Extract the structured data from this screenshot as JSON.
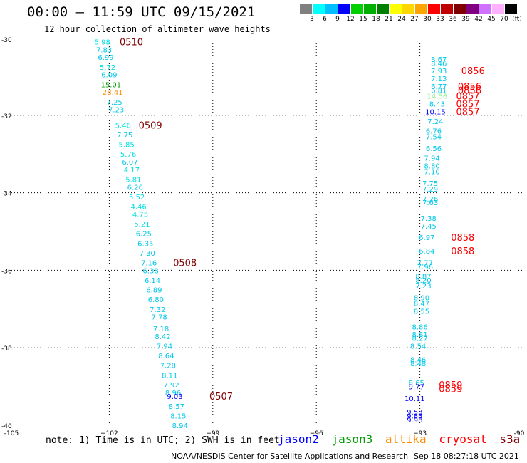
{
  "header": {
    "title": "00:00 – 11:59 UTC 09/15/2021",
    "subtitle": "12 hour collection of altimeter wave heights"
  },
  "color_scale": {
    "labels": [
      "3",
      "6",
      "9",
      "12",
      "15",
      "18",
      "21",
      "24",
      "27",
      "30",
      "33",
      "36",
      "39",
      "42",
      "45",
      "70",
      "(ft)"
    ],
    "colors": [
      "#808080",
      "#00ffff",
      "#00bfff",
      "#0000ff",
      "#00d000",
      "#00b000",
      "#008000",
      "#ffff00",
      "#ffd700",
      "#ffa500",
      "#ff0000",
      "#c00000",
      "#800000",
      "#800080",
      "#d070ff",
      "#ffb0ff",
      "#000000"
    ]
  },
  "footer": {
    "note": "note:  1) Time is in UTC;  2) SWH is in feet",
    "credit": "NOAA/NESDIS Center for Satellite Applications and Research",
    "timestamp": "Sep 18 08:27:18 UTC 2021"
  },
  "legend": [
    {
      "name": "jason2",
      "color": "#0000ff"
    },
    {
      "name": "jason3",
      "color": "#00a000"
    },
    {
      "name": "altika",
      "color": "#ff8c00"
    },
    {
      "name": "cryosat",
      "color": "#ff0000"
    },
    {
      "name": "s3a",
      "color": "#800000"
    }
  ],
  "chart_data": {
    "type": "scatter",
    "title": "00:00 – 11:59 UTC 09/15/2021",
    "xlim": [
      -105,
      -90
    ],
    "ylim": [
      -40,
      -30
    ],
    "x_ticks": [
      -105,
      -102,
      -99,
      -96,
      -93,
      -90
    ],
    "x_tick_labels": [
      "-105",
      "−102",
      "−99",
      "−96",
      "−93",
      "-90"
    ],
    "y_ticks": [
      -30,
      -32,
      -34,
      -36,
      -38,
      -40
    ],
    "y_tick_labels": [
      "-30",
      "-32",
      "-34",
      "-36",
      "-38",
      "-40"
    ],
    "grid": true,
    "points": [
      {
        "x": -102.2,
        "y": -30.1,
        "label": "5.98",
        "color": "#00e0e0"
      },
      {
        "x": -102.15,
        "y": -30.3,
        "label": "7.83",
        "color": "#00c8e8"
      },
      {
        "x": -102.1,
        "y": -30.5,
        "label": "6.99",
        "color": "#00c8e8"
      },
      {
        "x": -102.05,
        "y": -30.75,
        "label": "5.72",
        "color": "#00e0e0"
      },
      {
        "x": -102.0,
        "y": -30.95,
        "label": "6.09",
        "color": "#00c8e8"
      },
      {
        "x": -101.95,
        "y": -31.2,
        "label": "15.01",
        "color": "#00a000"
      },
      {
        "x": -101.9,
        "y": -31.4,
        "label": "28.41",
        "color": "#ff8c00"
      },
      {
        "x": -101.85,
        "y": -31.65,
        "label": "7.25",
        "color": "#00c8e8"
      },
      {
        "x": -101.8,
        "y": -31.85,
        "label": "7.23",
        "color": "#00c8e8"
      },
      {
        "x": -101.6,
        "y": -32.25,
        "label": "5.46",
        "color": "#00e0e0"
      },
      {
        "x": -101.55,
        "y": -32.5,
        "label": "7.75",
        "color": "#00c8e8"
      },
      {
        "x": -101.5,
        "y": -32.75,
        "label": "5.85",
        "color": "#00e0e0"
      },
      {
        "x": -101.45,
        "y": -33.0,
        "label": "5.76",
        "color": "#00e0e0"
      },
      {
        "x": -101.4,
        "y": -33.2,
        "label": "6.07",
        "color": "#00c8e8"
      },
      {
        "x": -101.35,
        "y": -33.4,
        "label": "4.17",
        "color": "#00e0e0"
      },
      {
        "x": -101.3,
        "y": -33.65,
        "label": "5.81",
        "color": "#00e0e0"
      },
      {
        "x": -101.25,
        "y": -33.85,
        "label": "6.26",
        "color": "#00c8e8"
      },
      {
        "x": -101.2,
        "y": -34.1,
        "label": "5.52",
        "color": "#00e0e0"
      },
      {
        "x": -101.15,
        "y": -34.35,
        "label": "4.46",
        "color": "#00e0e0"
      },
      {
        "x": -101.1,
        "y": -34.55,
        "label": "4.75",
        "color": "#00e0e0"
      },
      {
        "x": -101.05,
        "y": -34.8,
        "label": "5.21",
        "color": "#00e0e0"
      },
      {
        "x": -101.0,
        "y": -35.05,
        "label": "6.25",
        "color": "#00c8e8"
      },
      {
        "x": -100.95,
        "y": -35.3,
        "label": "6.35",
        "color": "#00c8e8"
      },
      {
        "x": -100.9,
        "y": -35.55,
        "label": "7.30",
        "color": "#00c8e8"
      },
      {
        "x": -100.85,
        "y": -35.8,
        "label": "7.16",
        "color": "#00c8e8"
      },
      {
        "x": -100.8,
        "y": -36.0,
        "label": "6.38",
        "color": "#00c8e8"
      },
      {
        "x": -100.75,
        "y": -36.25,
        "label": "6.14",
        "color": "#00c8e8"
      },
      {
        "x": -100.7,
        "y": -36.5,
        "label": "6.89",
        "color": "#00c8e8"
      },
      {
        "x": -100.65,
        "y": -36.75,
        "label": "6.80",
        "color": "#00c8e8"
      },
      {
        "x": -100.6,
        "y": -37.0,
        "label": "7.32",
        "color": "#00c8e8"
      },
      {
        "x": -100.55,
        "y": -37.2,
        "label": "7.78",
        "color": "#00c8e8"
      },
      {
        "x": -100.5,
        "y": -37.5,
        "label": "7.18",
        "color": "#00c8e8"
      },
      {
        "x": -100.45,
        "y": -37.7,
        "label": "8.42",
        "color": "#00c8e8"
      },
      {
        "x": -100.4,
        "y": -37.95,
        "label": "7.94",
        "color": "#00c8e8"
      },
      {
        "x": -100.35,
        "y": -38.2,
        "label": "8.64",
        "color": "#00c8e8"
      },
      {
        "x": -100.3,
        "y": -38.45,
        "label": "7.28",
        "color": "#00c8e8"
      },
      {
        "x": -100.25,
        "y": -38.7,
        "label": "8.11",
        "color": "#00c8e8"
      },
      {
        "x": -100.2,
        "y": -38.95,
        "label": "7.92",
        "color": "#00c8e8"
      },
      {
        "x": -100.15,
        "y": -39.15,
        "label": "8.96",
        "color": "#00c8e8"
      },
      {
        "x": -100.1,
        "y": -39.25,
        "label": "9.03",
        "color": "#0000ff"
      },
      {
        "x": -100.05,
        "y": -39.5,
        "label": "8.57",
        "color": "#00c8e8"
      },
      {
        "x": -100.0,
        "y": -39.75,
        "label": "8.15",
        "color": "#00c8e8"
      },
      {
        "x": -99.95,
        "y": -40.0,
        "label": "8.94",
        "color": "#00c8e8"
      },
      {
        "x": -92.45,
        "y": -30.55,
        "label": "8.67",
        "color": "#00c8e8"
      },
      {
        "x": -92.45,
        "y": -30.65,
        "label": "8.46",
        "color": "#00c8e8"
      },
      {
        "x": -92.45,
        "y": -30.85,
        "label": "7.93",
        "color": "#00c8e8"
      },
      {
        "x": -92.45,
        "y": -31.05,
        "label": "7.13",
        "color": "#00c8e8"
      },
      {
        "x": -92.45,
        "y": -31.25,
        "label": "6.77",
        "color": "#00c8e8"
      },
      {
        "x": -92.45,
        "y": -31.35,
        "label": "6.81",
        "color": "#00c8e8"
      },
      {
        "x": -92.5,
        "y": -31.5,
        "label": "14.56",
        "color": "#90ee90"
      },
      {
        "x": -92.5,
        "y": -31.7,
        "label": "8.43",
        "color": "#00c8e8"
      },
      {
        "x": -92.55,
        "y": -31.9,
        "label": "10.15",
        "color": "#0000ff"
      },
      {
        "x": -92.55,
        "y": -32.15,
        "label": "7.24",
        "color": "#00c8e8"
      },
      {
        "x": -92.6,
        "y": -32.4,
        "label": "6.76",
        "color": "#00c8e8"
      },
      {
        "x": -92.6,
        "y": -32.55,
        "label": "7.54",
        "color": "#00c8e8"
      },
      {
        "x": -92.6,
        "y": -32.85,
        "label": "6.56",
        "color": "#00c8e8"
      },
      {
        "x": -92.65,
        "y": -33.1,
        "label": "7.94",
        "color": "#00c8e8"
      },
      {
        "x": -92.65,
        "y": -33.3,
        "label": "8.80",
        "color": "#00c8e8"
      },
      {
        "x": -92.65,
        "y": -33.45,
        "label": "7.10",
        "color": "#00c8e8"
      },
      {
        "x": -92.7,
        "y": -33.75,
        "label": "7.75",
        "color": "#00c8e8"
      },
      {
        "x": -92.7,
        "y": -33.9,
        "label": "7.29",
        "color": "#00c8e8"
      },
      {
        "x": -92.7,
        "y": -34.15,
        "label": "7.26",
        "color": "#00c8e8"
      },
      {
        "x": -92.7,
        "y": -34.25,
        "label": "7.63",
        "color": "#00c8e8"
      },
      {
        "x": -92.75,
        "y": -34.65,
        "label": "7.38",
        "color": "#00c8e8"
      },
      {
        "x": -92.75,
        "y": -34.85,
        "label": "7.45",
        "color": "#00c8e8"
      },
      {
        "x": -92.8,
        "y": -35.15,
        "label": "6.97",
        "color": "#00c8e8"
      },
      {
        "x": -92.8,
        "y": -35.5,
        "label": "6.84",
        "color": "#00c8e8"
      },
      {
        "x": -92.85,
        "y": -35.8,
        "label": "7.77",
        "color": "#00c8e8"
      },
      {
        "x": -92.85,
        "y": -35.9,
        "label": "7.96",
        "color": "#00c8e8"
      },
      {
        "x": -92.9,
        "y": -36.15,
        "label": "8.87",
        "color": "#00c8e8"
      },
      {
        "x": -92.9,
        "y": -36.25,
        "label": "8.20",
        "color": "#00c8e8"
      },
      {
        "x": -92.9,
        "y": -36.4,
        "label": "7.23",
        "color": "#00c8e8"
      },
      {
        "x": -92.95,
        "y": -36.7,
        "label": "8.90",
        "color": "#00c8e8"
      },
      {
        "x": -92.95,
        "y": -36.85,
        "label": "8.47",
        "color": "#00c8e8"
      },
      {
        "x": -92.95,
        "y": -37.05,
        "label": "8.55",
        "color": "#00c8e8"
      },
      {
        "x": -93.0,
        "y": -37.45,
        "label": "8.86",
        "color": "#00c8e8"
      },
      {
        "x": -93.0,
        "y": -37.65,
        "label": "8.81",
        "color": "#00c8e8"
      },
      {
        "x": -93.0,
        "y": -37.75,
        "label": "8.27",
        "color": "#00c8e8"
      },
      {
        "x": -93.05,
        "y": -37.95,
        "label": "8.54",
        "color": "#00c8e8"
      },
      {
        "x": -93.05,
        "y": -38.3,
        "label": "8.46",
        "color": "#00c8e8"
      },
      {
        "x": -93.05,
        "y": -38.4,
        "label": "8.48",
        "color": "#00c8e8"
      },
      {
        "x": -93.1,
        "y": -38.9,
        "label": "8.65",
        "color": "#00c8e8"
      },
      {
        "x": -93.1,
        "y": -39.0,
        "label": "9.77",
        "color": "#0000ff"
      },
      {
        "x": -93.15,
        "y": -39.3,
        "label": "10.11",
        "color": "#0000ff"
      },
      {
        "x": -93.15,
        "y": -39.65,
        "label": "9.53",
        "color": "#0000ff"
      },
      {
        "x": -93.15,
        "y": -39.75,
        "label": "9.83",
        "color": "#0000ff"
      },
      {
        "x": -93.15,
        "y": -39.85,
        "label": "9.98",
        "color": "#0000ff"
      }
    ],
    "annotations": [
      {
        "x": -101.7,
        "y": -30.1,
        "text": "0510",
        "color": "#800000"
      },
      {
        "x": -101.15,
        "y": -32.25,
        "text": "0509",
        "color": "#800000"
      },
      {
        "x": -100.15,
        "y": -35.8,
        "text": "0508",
        "color": "#800000"
      },
      {
        "x": -99.1,
        "y": -39.25,
        "text": "0507",
        "color": "#800000"
      },
      {
        "x": -91.8,
        "y": -30.85,
        "text": "0856",
        "color": "#ff0000"
      },
      {
        "x": -91.9,
        "y": -31.25,
        "text": "0856",
        "color": "#ff0000"
      },
      {
        "x": -91.9,
        "y": -31.35,
        "text": "0856",
        "color": "#ff0000"
      },
      {
        "x": -91.95,
        "y": -31.5,
        "text": "0857",
        "color": "#ff0000"
      },
      {
        "x": -91.95,
        "y": -31.7,
        "text": "0857",
        "color": "#ff0000"
      },
      {
        "x": -91.95,
        "y": -31.9,
        "text": "0857",
        "color": "#ff0000"
      },
      {
        "x": -92.1,
        "y": -35.15,
        "text": "0858",
        "color": "#ff0000"
      },
      {
        "x": -92.1,
        "y": -35.5,
        "text": "0858",
        "color": "#ff0000"
      },
      {
        "x": -92.45,
        "y": -38.95,
        "text": "0859",
        "color": "#ff0000"
      },
      {
        "x": -92.45,
        "y": -39.05,
        "text": "0859",
        "color": "#ff0000"
      }
    ]
  }
}
